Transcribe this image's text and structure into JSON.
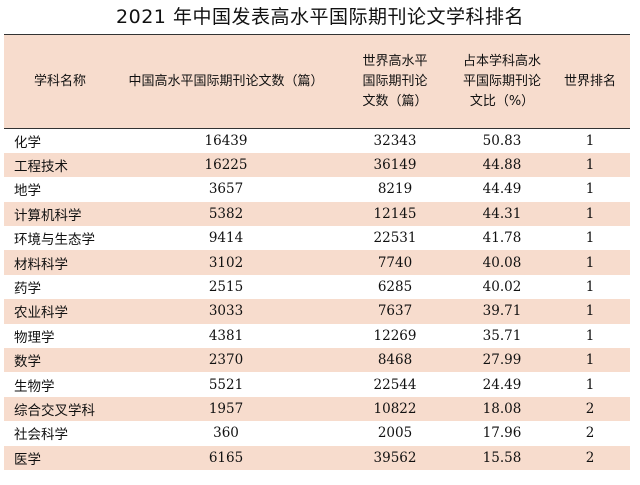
{
  "title": "2021 年中国发表高水平国际期刊论文学科排名",
  "headers": [
    "学科名称",
    "中国高水平国际期刊论文数（篇）",
    "世界高水平国际期刊论文数（篇）",
    "占本学科高水平国际期刊论文比（%）",
    "世界排名"
  ],
  "rows": [
    [
      "化学",
      "16439",
      "32343",
      "50.83",
      "1"
    ],
    [
      "工程技术",
      "16225",
      "36149",
      "44.88",
      "1"
    ],
    [
      "地学",
      "3657",
      "8219",
      "44.49",
      "1"
    ],
    [
      "计算机科学",
      "5382",
      "12145",
      "44.31",
      "1"
    ],
    [
      "环境与生态学",
      "9414",
      "22531",
      "41.78",
      "1"
    ],
    [
      "材料科学",
      "3102",
      "7740",
      "40.08",
      "1"
    ],
    [
      "药学",
      "2515",
      "6285",
      "40.02",
      "1"
    ],
    [
      "农业科学",
      "3033",
      "7637",
      "39.71",
      "1"
    ],
    [
      "物理学",
      "4381",
      "12269",
      "35.71",
      "1"
    ],
    [
      "数学",
      "2370",
      "8468",
      "27.99",
      "1"
    ],
    [
      "生物学",
      "5521",
      "22544",
      "24.49",
      "1"
    ],
    [
      "综合交叉学科",
      "1957",
      "10822",
      "18.08",
      "2"
    ],
    [
      "社会科学",
      "360",
      "2005",
      "17.96",
      "2"
    ],
    [
      "医学",
      "6165",
      "39562",
      "15.58",
      "2"
    ]
  ]
}
